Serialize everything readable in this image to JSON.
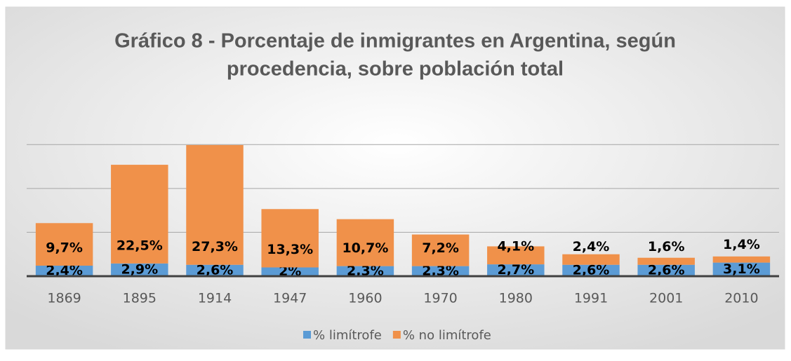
{
  "chart_data": {
    "type": "stacked_bar",
    "title": "Gráfico 8 - Porcentaje de inmigrantes en Argentina, según procedencia, sobre población total",
    "categories": [
      "1869",
      "1895",
      "1914",
      "1947",
      "1960",
      "1970",
      "1980",
      "1991",
      "2001",
      "2010"
    ],
    "series": [
      {
        "name": "% limítrofe",
        "color": "#5b9bd5",
        "values": [
          2.4,
          2.9,
          2.6,
          2,
          2.3,
          2.3,
          2.7,
          2.6,
          2.6,
          3.1
        ],
        "value_labels": [
          "2,4%",
          "2,9%",
          "2,6%",
          "2%",
          "2,3%",
          "2,3%",
          "2,7%",
          "2,6%",
          "2,6%",
          "3,1%"
        ]
      },
      {
        "name": "% no limítrofe",
        "color": "#f0914a",
        "values": [
          9.7,
          22.5,
          27.3,
          13.3,
          10.7,
          7.2,
          4.1,
          2.4,
          1.6,
          1.4
        ],
        "value_labels": [
          "9,7%",
          "22,5%",
          "27,3%",
          "13,3%",
          "10,7%",
          "7,2%",
          "4,1%",
          "2,4%",
          "1,6%",
          "1,4%"
        ]
      }
    ],
    "ylim": [
      0,
      35
    ],
    "yticks": [
      0,
      10,
      20,
      30
    ],
    "grid": true,
    "legend": "bottom"
  }
}
